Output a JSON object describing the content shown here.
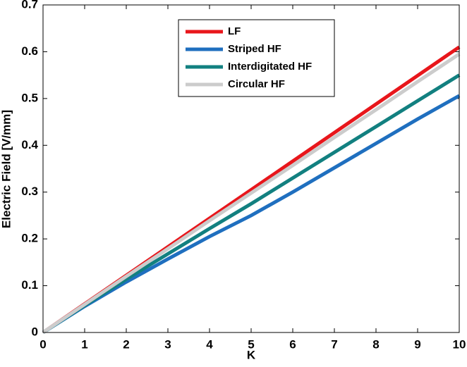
{
  "chart_data": {
    "type": "line",
    "x_label": "K",
    "y_label": "Electric Field [V/mm]",
    "x": [
      0,
      1,
      2,
      3,
      4,
      5,
      6,
      7,
      8,
      9,
      10
    ],
    "series": [
      {
        "name": "LF",
        "color": "#e8161b",
        "values": [
          0,
          0.061,
          0.122,
          0.183,
          0.244,
          0.305,
          0.366,
          0.427,
          0.488,
          0.549,
          0.61
        ]
      },
      {
        "name": "Striped HF",
        "color": "#1f6fbf",
        "values": [
          0,
          0.056,
          0.108,
          0.157,
          0.205,
          0.25,
          0.3,
          0.352,
          0.404,
          0.456,
          0.506
        ]
      },
      {
        "name": "Interdigitated HF",
        "color": "#128080",
        "values": [
          0,
          0.058,
          0.114,
          0.168,
          0.222,
          0.275,
          0.33,
          0.385,
          0.44,
          0.495,
          0.55
        ]
      },
      {
        "name": "Circular HF",
        "color": "#cccccc",
        "values": [
          0,
          0.06,
          0.12,
          0.179,
          0.239,
          0.298,
          0.357,
          0.417,
          0.476,
          0.536,
          0.595
        ]
      }
    ],
    "xlim": [
      0,
      10
    ],
    "xticks": [
      0,
      1,
      2,
      3,
      4,
      5,
      6,
      7,
      8,
      9,
      10
    ],
    "ylim": [
      0,
      0.7
    ],
    "yticks": [
      0,
      0.1,
      0.2,
      0.3,
      0.4,
      0.5,
      0.6,
      0.7
    ],
    "grid": false,
    "legend": "top-center"
  }
}
